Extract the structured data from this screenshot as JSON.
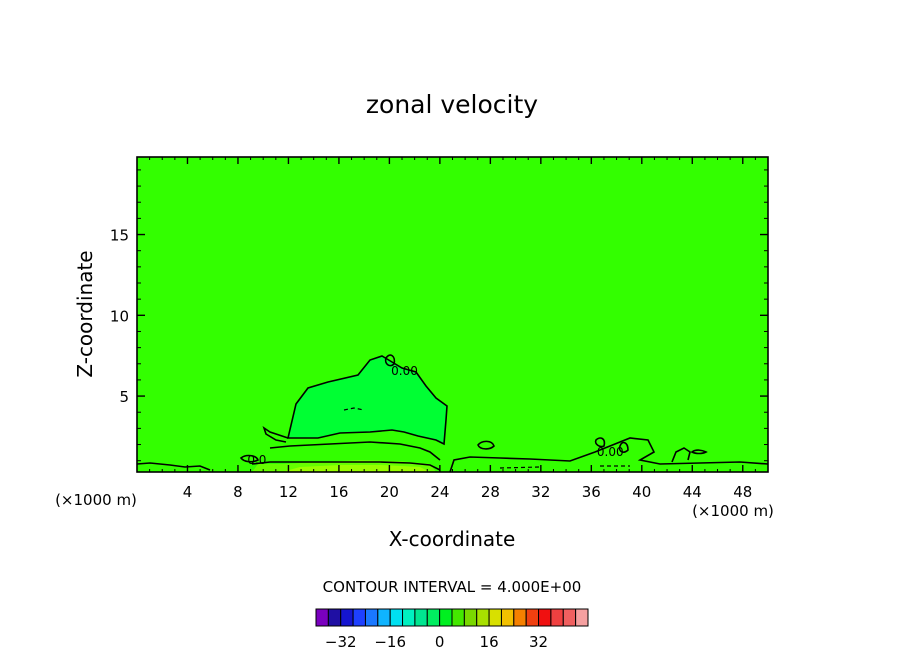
{
  "chart_data": {
    "type": "contour",
    "title": "zonal velocity",
    "xlabel": "X-coordinate",
    "ylabel": "Z-coordinate",
    "x_unit_left": "(×1000 m)",
    "x_unit_right": "(×1000 m)",
    "xlim": [
      0,
      50
    ],
    "ylim": [
      0.3,
      19.8
    ],
    "x_ticks": [
      4,
      8,
      12,
      16,
      20,
      24,
      28,
      32,
      36,
      40,
      44,
      48
    ],
    "x_tick_labels": [
      "4",
      "8",
      "12",
      "16",
      "20",
      "24",
      "28",
      "32",
      "36",
      "40",
      "44",
      "48"
    ],
    "y_ticks": [
      5,
      10,
      15
    ],
    "y_tick_labels": [
      "5",
      "10",
      "15"
    ],
    "contour_labels": [
      {
        "text": "0.00",
        "x": 21.2,
        "z": 6.6
      },
      {
        "text": "0.00",
        "x": 37.5,
        "z": 1.6
      },
      {
        "text": "0.0",
        "x": 9.5,
        "z": 1.1
      }
    ],
    "contour_interval_text": "CONTOUR INTERVAL = 4.000E+00",
    "colorbar": {
      "colors": [
        "#7a00bf",
        "#1f0fa3",
        "#1515d0",
        "#1e40ff",
        "#1a78ff",
        "#0fb4ff",
        "#00e0f0",
        "#00f0c0",
        "#00e690",
        "#00ee60",
        "#00f020",
        "#44e800",
        "#7ad800",
        "#a8e000",
        "#d8e000",
        "#f2c000",
        "#f58000",
        "#f04010",
        "#f01010",
        "#f04040",
        "#f06060",
        "#f5a0a0"
      ],
      "tick_values": [
        -32,
        -16,
        0,
        16,
        32
      ],
      "tick_labels": [
        "−32",
        "−16",
        "0",
        "16",
        "32"
      ]
    },
    "field_colors": {
      "background": "#33ff00",
      "weak_positive": "#00ff33",
      "surface_negative": "#66ff00",
      "surface_strong": "#99ff00"
    }
  }
}
